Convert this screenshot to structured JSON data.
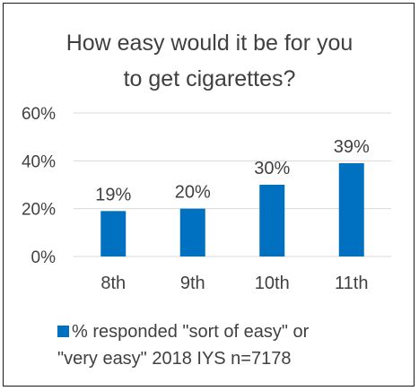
{
  "colors": {
    "bar": "#0070C0",
    "text": "#404040",
    "grid": "#d9d9d9",
    "border": "#1a1a1a"
  },
  "chart_data": {
    "type": "bar",
    "title_lines": [
      "How easy would it be for you",
      "to get cigarettes?"
    ],
    "categories": [
      "8th",
      "9th",
      "10th",
      "11th"
    ],
    "series": [
      {
        "name": "% responded \"sort of easy\" or \"very easy\"   2018 IYS n=7178",
        "values": [
          19,
          20,
          30,
          39
        ]
      }
    ],
    "data_labels": [
      "19%",
      "20%",
      "30%",
      "39%"
    ],
    "y_ticks": [
      "0%",
      "20%",
      "40%",
      "60%"
    ],
    "ylim": [
      0,
      60
    ],
    "grid": true,
    "legend_position": "bottom"
  }
}
